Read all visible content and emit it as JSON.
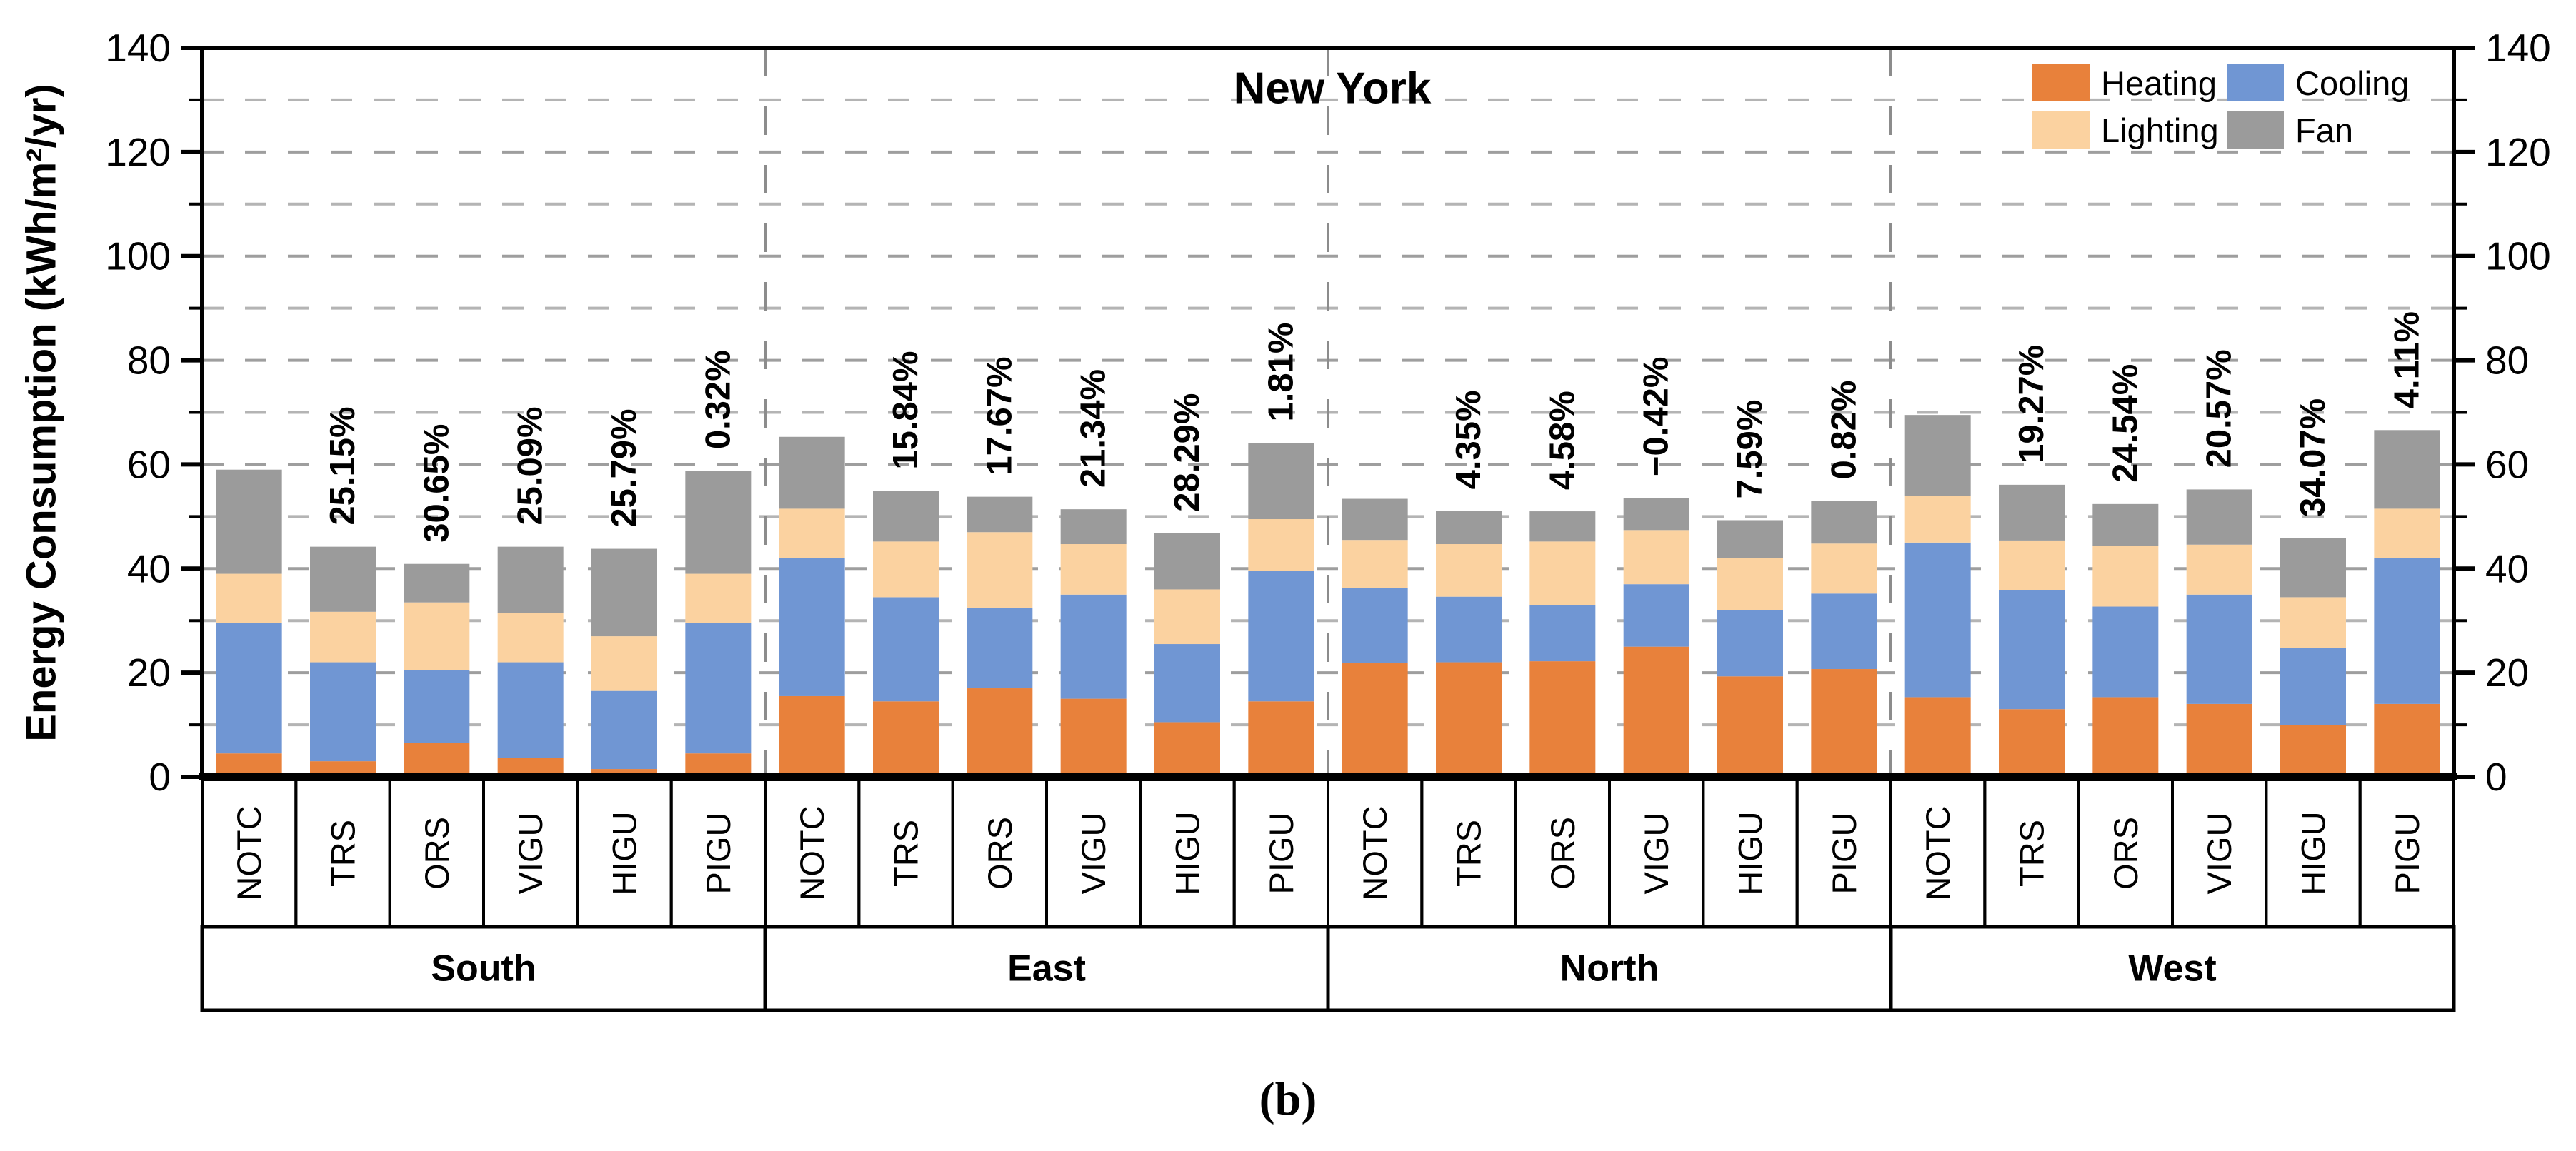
{
  "title": "New York",
  "caption": "(b)",
  "y_axis": {
    "label": "Energy Consumption (kWh/m²/yr)",
    "ticks": [
      0,
      20,
      40,
      60,
      80,
      100,
      120,
      140
    ],
    "minor_step": 10,
    "max": 140
  },
  "legend": [
    {
      "name": "Heating",
      "color": "#E8813B"
    },
    {
      "name": "Cooling",
      "color": "#7096D3"
    },
    {
      "name": "Lighting",
      "color": "#FBD2A0"
    },
    {
      "name": "Fan",
      "color": "#9B9B9B"
    }
  ],
  "chart_data": {
    "type": "bar",
    "stacked": true,
    "title": "New York",
    "ylabel": "Energy Consumption (kWh/m²/yr)",
    "ylim": [
      0,
      140
    ],
    "grid": "dashed horizontal every 10, dashed vertical group separators",
    "legend_position": "top-right",
    "series_order": [
      "Heating",
      "Cooling",
      "Lighting",
      "Fan"
    ],
    "groups": [
      {
        "name": "South",
        "bars": [
          {
            "category": "NOTC",
            "Heating": 4.5,
            "Cooling": 25.0,
            "Lighting": 9.5,
            "Fan": 20.0,
            "label": null
          },
          {
            "category": "TRS",
            "Heating": 3.0,
            "Cooling": 19.0,
            "Lighting": 9.7,
            "Fan": 12.5,
            "label": "25.15%"
          },
          {
            "category": "ORS",
            "Heating": 6.5,
            "Cooling": 14.0,
            "Lighting": 13.0,
            "Fan": 7.4,
            "label": "30.65%"
          },
          {
            "category": "VIGU",
            "Heating": 3.7,
            "Cooling": 18.3,
            "Lighting": 9.5,
            "Fan": 12.7,
            "label": "25.09%"
          },
          {
            "category": "HIGU",
            "Heating": 1.5,
            "Cooling": 15.0,
            "Lighting": 10.5,
            "Fan": 16.8,
            "label": "25.79%"
          },
          {
            "category": "PIGU",
            "Heating": 4.5,
            "Cooling": 25.0,
            "Lighting": 9.5,
            "Fan": 19.8,
            "label": "0.32%"
          }
        ]
      },
      {
        "name": "East",
        "bars": [
          {
            "category": "NOTC",
            "Heating": 15.5,
            "Cooling": 26.5,
            "Lighting": 9.5,
            "Fan": 13.8,
            "label": null
          },
          {
            "category": "TRS",
            "Heating": 14.5,
            "Cooling": 20.0,
            "Lighting": 10.7,
            "Fan": 9.7,
            "label": "15.84%"
          },
          {
            "category": "ORS",
            "Heating": 17.0,
            "Cooling": 15.5,
            "Lighting": 14.5,
            "Fan": 6.8,
            "label": "17.67%"
          },
          {
            "category": "VIGU",
            "Heating": 15.0,
            "Cooling": 20.0,
            "Lighting": 9.7,
            "Fan": 6.7,
            "label": "21.34%"
          },
          {
            "category": "HIGU",
            "Heating": 10.5,
            "Cooling": 15.0,
            "Lighting": 10.5,
            "Fan": 10.8,
            "label": "28.29%"
          },
          {
            "category": "PIGU",
            "Heating": 14.5,
            "Cooling": 25.0,
            "Lighting": 10.0,
            "Fan": 14.6,
            "label": "1.81%"
          }
        ]
      },
      {
        "name": "North",
        "bars": [
          {
            "category": "NOTC",
            "Heating": 21.8,
            "Cooling": 14.5,
            "Lighting": 9.2,
            "Fan": 7.9,
            "label": null
          },
          {
            "category": "TRS",
            "Heating": 22.0,
            "Cooling": 12.6,
            "Lighting": 10.1,
            "Fan": 6.4,
            "label": "4.35%"
          },
          {
            "category": "ORS",
            "Heating": 22.2,
            "Cooling": 10.8,
            "Lighting": 12.2,
            "Fan": 5.8,
            "label": "4.58%"
          },
          {
            "category": "VIGU",
            "Heating": 25.0,
            "Cooling": 12.0,
            "Lighting": 10.4,
            "Fan": 6.2,
            "label": "−0.42%"
          },
          {
            "category": "HIGU",
            "Heating": 19.3,
            "Cooling": 12.7,
            "Lighting": 10.0,
            "Fan": 7.3,
            "label": "7.59%"
          },
          {
            "category": "PIGU",
            "Heating": 20.7,
            "Cooling": 14.5,
            "Lighting": 9.6,
            "Fan": 8.2,
            "label": "0.82%"
          }
        ]
      },
      {
        "name": "West",
        "bars": [
          {
            "category": "NOTC",
            "Heating": 15.3,
            "Cooling": 29.7,
            "Lighting": 9.0,
            "Fan": 15.5,
            "label": null
          },
          {
            "category": "TRS",
            "Heating": 13.0,
            "Cooling": 22.8,
            "Lighting": 9.6,
            "Fan": 10.7,
            "label": "19.27%"
          },
          {
            "category": "ORS",
            "Heating": 15.3,
            "Cooling": 17.4,
            "Lighting": 11.6,
            "Fan": 8.1,
            "label": "24.54%"
          },
          {
            "category": "VIGU",
            "Heating": 14.0,
            "Cooling": 21.0,
            "Lighting": 9.6,
            "Fan": 10.6,
            "label": "20.57%"
          },
          {
            "category": "HIGU",
            "Heating": 10.0,
            "Cooling": 14.8,
            "Lighting": 9.7,
            "Fan": 11.3,
            "label": "34.07%"
          },
          {
            "category": "PIGU",
            "Heating": 14.0,
            "Cooling": 28.0,
            "Lighting": 9.5,
            "Fan": 15.1,
            "label": "4.11%"
          }
        ]
      }
    ]
  }
}
